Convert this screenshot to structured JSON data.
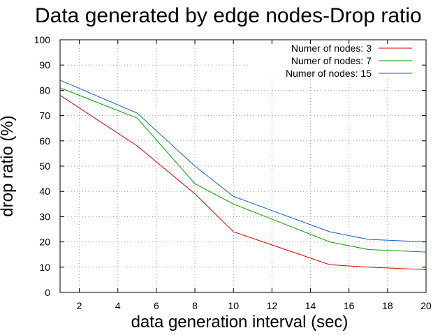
{
  "chart_data": {
    "type": "line",
    "title": "Data generated by edge nodes-Drop ratio",
    "xlabel": "data generation interval (sec)",
    "ylabel": "drop ratio (%)",
    "xlim": [
      1,
      20
    ],
    "ylim": [
      0,
      100
    ],
    "xticks": [
      2,
      4,
      6,
      8,
      10,
      12,
      14,
      16,
      18,
      20
    ],
    "yticks": [
      0,
      10,
      20,
      30,
      40,
      50,
      60,
      70,
      80,
      90,
      100
    ],
    "grid": true,
    "legend_position": "top-right",
    "series": [
      {
        "name": "Numer of nodes: 3",
        "color": "#e00000",
        "x": [
          1,
          5,
          8,
          10,
          15,
          17,
          20
        ],
        "y": [
          78,
          58,
          39,
          24,
          11,
          10,
          9
        ]
      },
      {
        "name": "Numer of nodes: 7",
        "color": "#00a000",
        "x": [
          1,
          5,
          8,
          10,
          15,
          17,
          20
        ],
        "y": [
          81,
          69,
          43,
          35,
          20,
          17,
          16
        ]
      },
      {
        "name": "Numer of nodes: 15",
        "color": "#1060d0",
        "x": [
          1,
          5,
          8,
          10,
          15,
          17,
          20
        ],
        "y": [
          84,
          71,
          50,
          38,
          24,
          21,
          20
        ]
      }
    ]
  }
}
